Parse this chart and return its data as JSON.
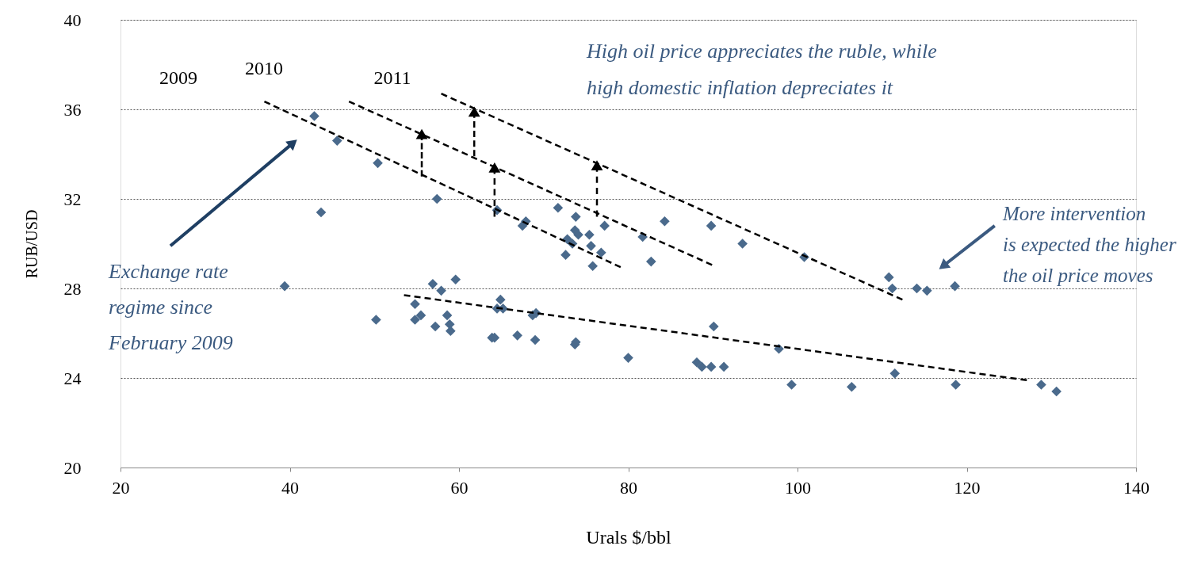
{
  "chart_data": {
    "type": "scatter",
    "xlabel": "Urals $/bbl",
    "ylabel": "RUB/USD",
    "xlim": [
      20,
      140
    ],
    "xticks": [
      20,
      40,
      60,
      80,
      100,
      120,
      140
    ],
    "ylim": [
      20,
      40
    ],
    "yticks": [
      20,
      24,
      28,
      32,
      36,
      40
    ],
    "grid": "y",
    "marker": "diamond",
    "series": [
      {
        "color": "#4a6a8c",
        "x": [
          39.4,
          42.9,
          43.7,
          45.6,
          50.2,
          50.4,
          54.8,
          54.8,
          55.5,
          56.9,
          57.2,
          57.4,
          57.9,
          58.6,
          58.9,
          59.0,
          59.6,
          63.9,
          64.2,
          64.5,
          64.5,
          64.9,
          65.2,
          66.9,
          67.5,
          67.9,
          68.7,
          69.0,
          69.1,
          71.7,
          72.6,
          72.8,
          73.7,
          73.8,
          73.8,
          73.7,
          74.1,
          73.4,
          75.4,
          75.6,
          75.8,
          76.8,
          77.2,
          80.0,
          81.7,
          82.7,
          84.3,
          88.1,
          88.7,
          89.8,
          89.8,
          90.1,
          91.3,
          93.5,
          97.8,
          99.3,
          100.8,
          106.4,
          110.8,
          111.2,
          111.5,
          114.1,
          115.3,
          118.6,
          118.7,
          128.8,
          130.6
        ],
        "values": [
          28.1,
          35.7,
          31.4,
          34.6,
          26.6,
          33.6,
          27.3,
          26.6,
          26.8,
          28.2,
          26.3,
          32.0,
          27.9,
          26.8,
          26.4,
          26.1,
          28.4,
          25.8,
          25.8,
          31.5,
          27.1,
          27.5,
          27.1,
          25.9,
          30.8,
          31.0,
          26.8,
          25.7,
          26.9,
          31.6,
          29.5,
          30.2,
          25.5,
          25.6,
          31.2,
          30.6,
          30.4,
          30.0,
          30.4,
          29.9,
          29.0,
          29.6,
          30.8,
          24.9,
          30.3,
          29.2,
          31.0,
          24.7,
          24.5,
          24.5,
          30.8,
          26.3,
          24.5,
          30.0,
          25.3,
          23.7,
          29.4,
          23.6,
          28.5,
          28.0,
          24.2,
          28.0,
          27.9,
          28.1,
          23.7,
          23.7,
          23.4
        ]
      },
      {
        "type": "line",
        "color": "#000000",
        "line_style": "dashed",
        "marker": "none",
        "x": [
          37.0,
          79.1
        ],
        "values": [
          36.35,
          28.95
        ]
      },
      {
        "type": "line",
        "color": "#000000",
        "line_style": "dashed",
        "marker": "none",
        "x": [
          47.0,
          89.9
        ],
        "values": [
          36.35,
          29.05
        ]
      },
      {
        "type": "line",
        "color": "#000000",
        "line_style": "dashed",
        "marker": "none",
        "x": [
          57.9,
          112.4
        ],
        "values": [
          36.7,
          27.5
        ]
      },
      {
        "type": "line",
        "color": "#000000",
        "line_style": "dashed",
        "marker": "none",
        "x": [
          53.5,
          127.1
        ],
        "values": [
          27.7,
          23.9
        ]
      },
      {
        "type": "line",
        "color": "#000000",
        "line_style": "dashed",
        "marker": "triangle",
        "x": [
          55.6,
          55.6
        ],
        "values": [
          33.0,
          34.9
        ]
      },
      {
        "type": "line",
        "color": "#000000",
        "line_style": "dashed",
        "marker": "triangle",
        "x": [
          61.8,
          61.8
        ],
        "values": [
          33.9,
          35.9
        ]
      },
      {
        "type": "line",
        "color": "#000000",
        "line_style": "dashed",
        "marker": "triangle",
        "x": [
          64.2,
          64.2
        ],
        "values": [
          31.2,
          33.4
        ]
      },
      {
        "type": "line",
        "color": "#000000",
        "line_style": "dashed",
        "marker": "triangle",
        "x": [
          76.3,
          76.3
        ],
        "values": [
          31.2,
          33.5
        ]
      },
      {
        "type": "line",
        "color": "#1f3f63",
        "line_style": "solid",
        "marker": "triangle",
        "x": [
          25.9,
          40.4
        ],
        "values": [
          29.9,
          34.5
        ]
      },
      {
        "type": "line",
        "color": "#3b5a80",
        "line_style": "solid",
        "marker": "triangle",
        "x": [
          123.3,
          117.2
        ],
        "values": [
          30.8,
          29.0
        ]
      }
    ],
    "annotations": [
      "2009",
      "2010",
      "2011",
      "High oil price appreciates the ruble, while\nhigh domestic inflation depreciates it",
      "Exchange rate\nregime since\nFebruary 2009",
      "More intervention\nis expected the higher\nthe oil price moves"
    ]
  }
}
